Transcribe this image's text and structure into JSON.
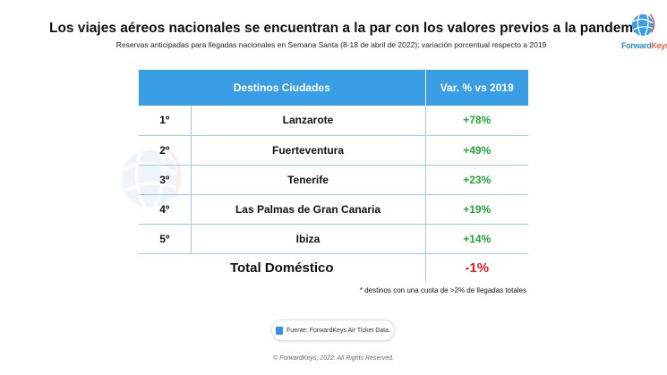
{
  "title": "Los viajes aéreos nacionales se encuentran a la par con los valores previos a la pandemia",
  "subtitle": "Reservas anticipadas para llegadas nacionales en Semana Santa (8-18 de abril de 2022); variación porcentual respecto a 2019",
  "logo": {
    "text_a": "Forward",
    "text_b": "Keys"
  },
  "watermark": {
    "text_a": "Forward",
    "text_b": "Keys"
  },
  "table": {
    "headers": [
      "Destinos Ciudades",
      "Var. % vs 2019"
    ],
    "rows": [
      {
        "rank": "1º",
        "city": "Lanzarote",
        "var": "+78%"
      },
      {
        "rank": "2º",
        "city": "Fuerteventura",
        "var": "+49%"
      },
      {
        "rank": "3º",
        "city": "Tenerife",
        "var": "+23%"
      },
      {
        "rank": "4º",
        "city": "Las Palmas de Gran Canaria",
        "var": "+19%"
      },
      {
        "rank": "5º",
        "city": "Ibiza",
        "var": "+14%"
      }
    ],
    "total": {
      "label": "Total Doméstico",
      "var": "-1%"
    }
  },
  "colors": {
    "header": "#3a9ee4",
    "positive": "#28a33a",
    "negative": "#e0221c"
  },
  "note": "* destinos con una cuota de >2% de llegadas totales",
  "source": "Fuente: ForwardKeys Air Ticket Data.",
  "copyright": "© ForwardKeys, 2022. All Rights Reserved."
}
